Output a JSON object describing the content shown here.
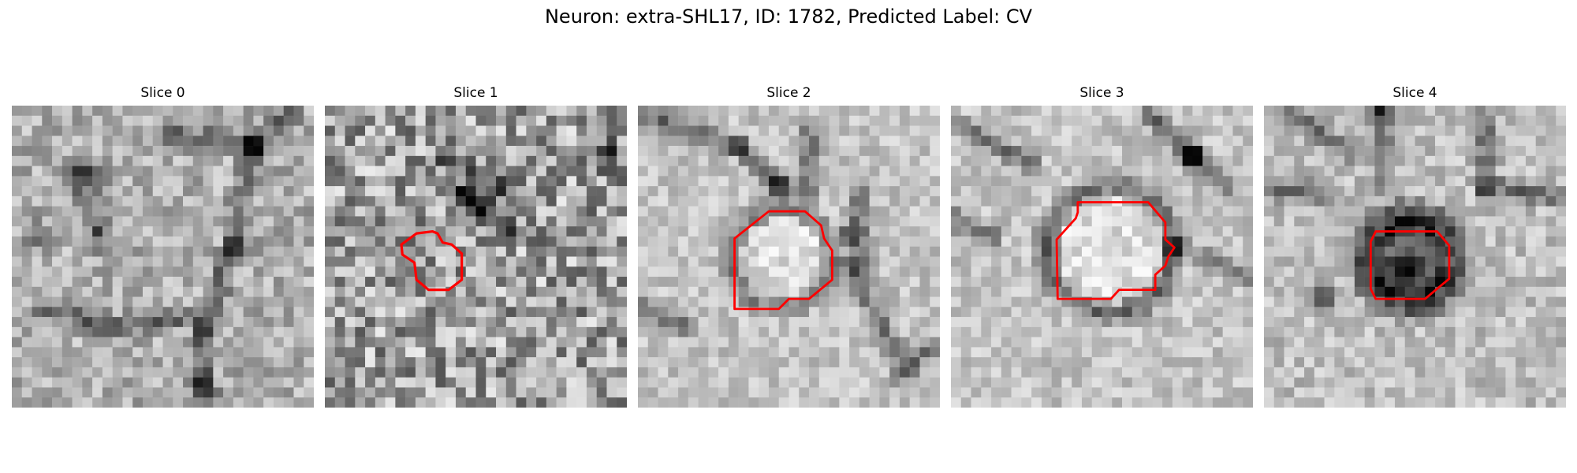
{
  "figure": {
    "title": "Neuron: extra-SHL17, ID: 1782, Predicted Label: CV"
  },
  "contour_color": "#ff0000",
  "colormap": "grayscale",
  "panels": [
    {
      "label": "Slice 0",
      "has_contour": false
    },
    {
      "label": "Slice 1",
      "has_contour": true
    },
    {
      "label": "Slice 2",
      "has_contour": true
    },
    {
      "label": "Slice 3",
      "has_contour": true
    },
    {
      "label": "Slice 4",
      "has_contour": true
    }
  ]
}
